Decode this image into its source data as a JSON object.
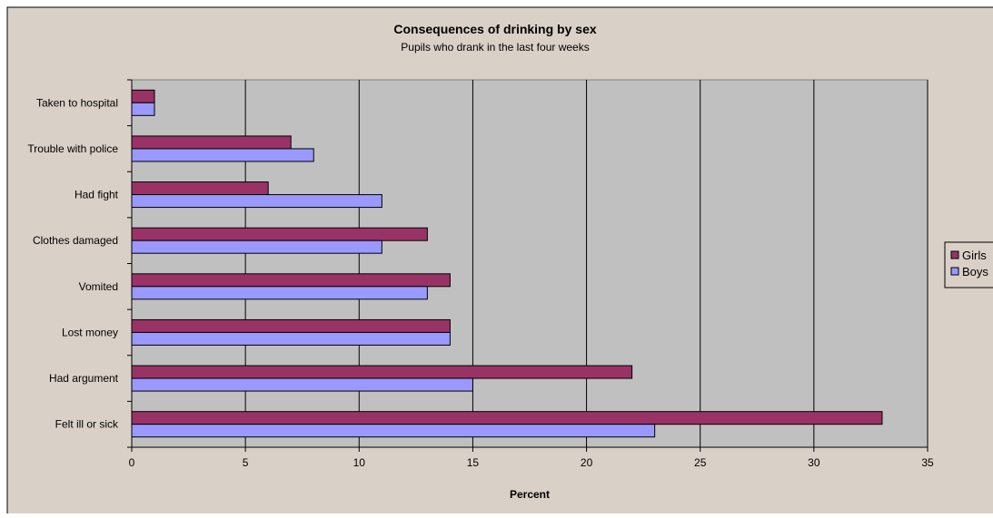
{
  "colors": {
    "chart_area": "#d9d0c7",
    "plot_area": "#c0c0c0",
    "girls": "#993366",
    "boys": "#9999ff",
    "gridline": "#000000"
  },
  "chart_data": {
    "type": "bar",
    "orientation": "horizontal",
    "title": "Consequences of drinking by sex",
    "subtitle": "Pupils who drank in the last four weeks",
    "xlabel": "Percent",
    "ylabel": "",
    "xlim": [
      0,
      35
    ],
    "xticks": [
      "0",
      "5",
      "10",
      "15",
      "20",
      "25",
      "30",
      "35"
    ],
    "grid": true,
    "legend_position": "right",
    "categories": [
      "Taken to hospital",
      "Trouble with police",
      "Had fight",
      "Clothes damaged",
      "Vomited",
      "Lost money",
      "Had argument",
      "Felt ill or sick"
    ],
    "series": [
      {
        "name": "Girls",
        "values": [
          1,
          7,
          6,
          13,
          14,
          14,
          22,
          33
        ]
      },
      {
        "name": "Boys",
        "values": [
          1,
          8,
          11,
          11,
          13,
          14,
          15,
          23
        ]
      }
    ]
  }
}
